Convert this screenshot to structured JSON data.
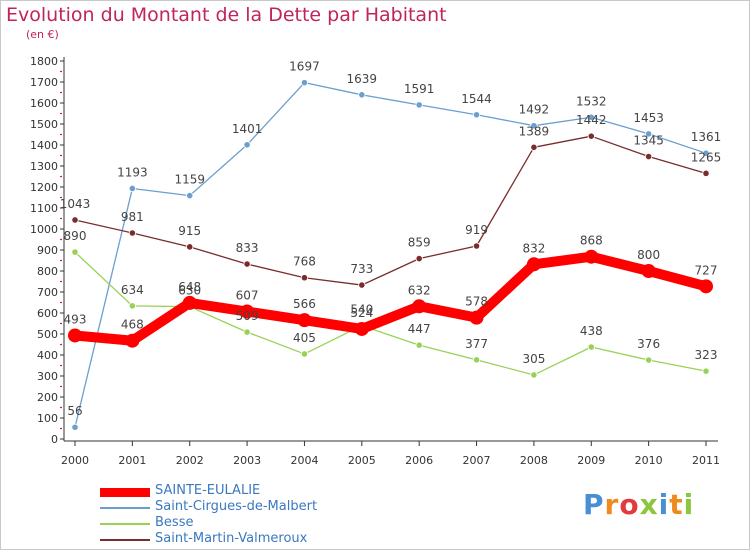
{
  "chart_data": {
    "type": "line",
    "title": "Evolution du Montant de la Dette par Habitant",
    "subtitle": "(en €)",
    "x": [
      "2000",
      "2001",
      "2002",
      "2003",
      "2004",
      "2005",
      "2006",
      "2007",
      "2008",
      "2009",
      "2010",
      "2011"
    ],
    "ylim": [
      0,
      1800
    ],
    "yticks": [
      0,
      100,
      200,
      300,
      400,
      500,
      600,
      700,
      800,
      900,
      1000,
      1100,
      1200,
      1300,
      1400,
      1500,
      1600,
      1700,
      1800
    ],
    "grid": false,
    "legend_position": "bottom-left",
    "series": [
      {
        "name": "SAINTE-EULALIE",
        "color": "#ff0000",
        "values": [
          493,
          468,
          648,
          607,
          566,
          524,
          632,
          578,
          832,
          868,
          800,
          727
        ]
      },
      {
        "name": "Saint-Cirgues-de-Malbert",
        "color": "#6a9fd0",
        "values": [
          56,
          1193,
          1159,
          1401,
          1697,
          1639,
          1591,
          1544,
          1492,
          1532,
          1453,
          1361
        ]
      },
      {
        "name": "Besse",
        "color": "#99d157",
        "values": [
          890,
          634,
          630,
          509,
          405,
          540,
          447,
          377,
          305,
          438,
          376,
          323
        ]
      },
      {
        "name": "Saint-Martin-Valmeroux",
        "color": "#7a2c2c",
        "values": [
          1043,
          981,
          915,
          833,
          768,
          733,
          859,
          919,
          1389,
          1442,
          1345,
          1265
        ]
      }
    ]
  },
  "logo": {
    "text": "Proxiti"
  }
}
